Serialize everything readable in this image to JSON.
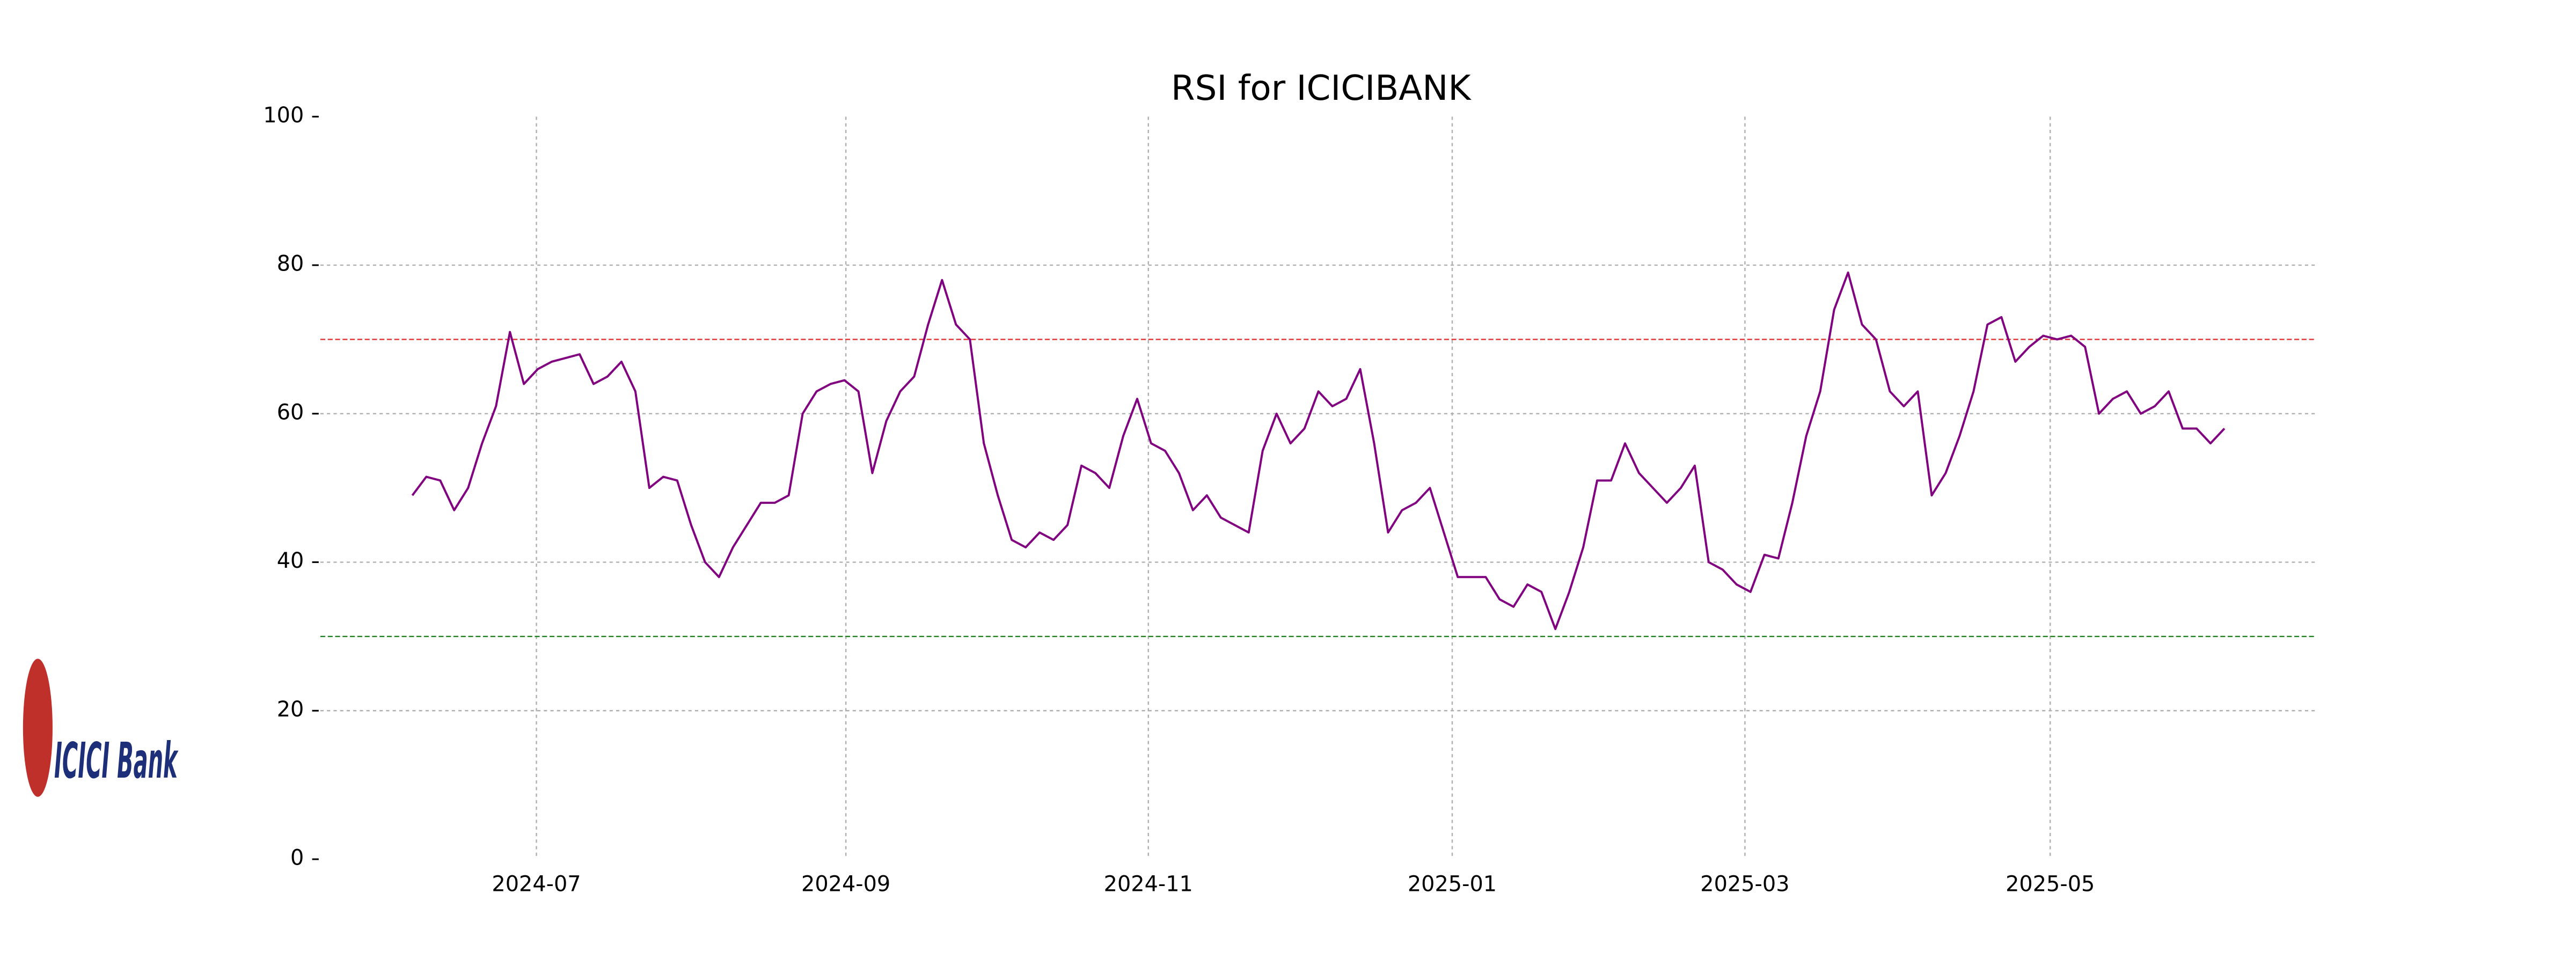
{
  "chart_data": {
    "type": "line",
    "title": "RSI for ICICIBANK",
    "logo_text": "ICICI Bank",
    "series": [
      {
        "color": "#800080",
        "values": [
          49,
          51.5,
          51,
          47,
          50,
          56,
          61,
          71,
          64,
          66,
          67,
          67.5,
          68,
          64,
          65,
          67,
          63,
          50,
          51.5,
          51,
          45,
          40,
          38,
          42,
          45,
          48,
          48,
          49,
          60,
          63,
          64,
          64.5,
          63,
          52,
          59,
          63,
          65,
          72,
          78,
          72,
          70,
          56,
          49,
          43,
          42,
          44,
          43,
          45,
          53,
          52,
          50,
          57,
          62,
          56,
          55,
          52,
          47,
          49,
          46,
          45,
          44,
          55,
          60,
          56,
          58,
          63,
          61,
          62,
          66,
          56,
          44,
          47,
          48,
          50,
          44,
          38,
          38,
          38,
          35,
          34,
          37,
          36,
          31,
          36,
          42,
          51,
          51,
          56,
          52,
          50,
          48,
          50,
          53,
          40,
          39,
          37,
          36,
          41,
          40.5,
          48,
          57,
          63,
          74,
          79,
          72,
          70,
          63,
          61,
          63,
          49,
          52,
          57,
          63,
          72,
          73,
          67,
          69,
          70.5,
          70,
          70.5,
          69,
          60,
          62,
          63,
          60,
          61,
          63,
          58,
          58,
          56,
          58
        ]
      }
    ],
    "xlim": [
      -6.6,
      136.6
    ],
    "xticks": [
      {
        "value": 8.9,
        "label": "2024-07"
      },
      {
        "value": 31.1,
        "label": "2024-09"
      },
      {
        "value": 52.8,
        "label": "2024-11"
      },
      {
        "value": 74.6,
        "label": "2025-01"
      },
      {
        "value": 95.6,
        "label": "2025-03"
      },
      {
        "value": 117.5,
        "label": "2025-05"
      }
    ],
    "ylim": [
      0,
      100
    ],
    "yticks": [
      0,
      20,
      40,
      60,
      80,
      100
    ],
    "grid": true,
    "hlines": [
      {
        "value": 70,
        "color": "#e03030"
      },
      {
        "value": 30,
        "color": "#208020"
      }
    ]
  }
}
